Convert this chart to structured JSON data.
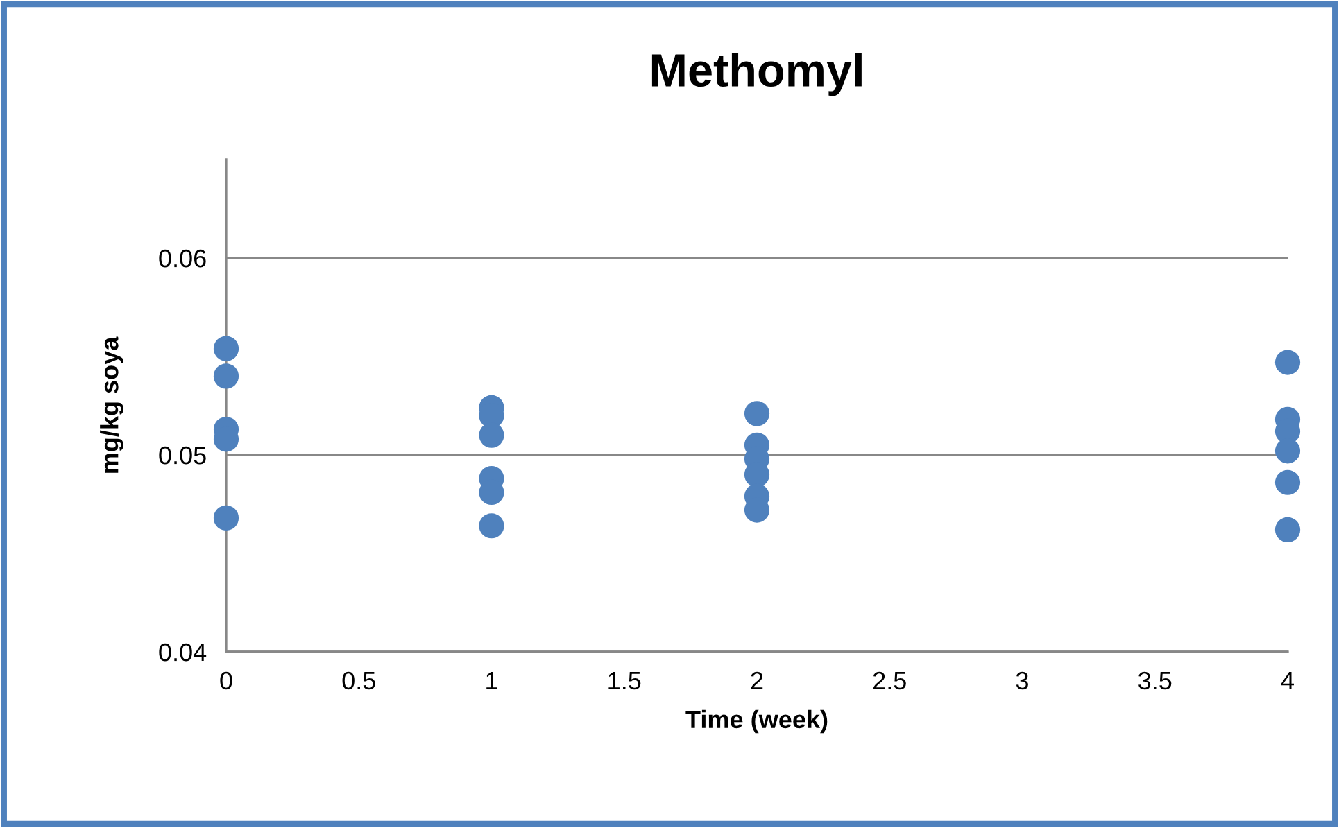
{
  "chart_data": {
    "type": "scatter",
    "title": "Methomyl",
    "xlabel": "Time (week)",
    "ylabel": "mg/kg soya",
    "series": [
      {
        "color": "#4f81bd",
        "x": [
          0,
          0,
          0,
          0,
          0,
          1,
          1,
          1,
          1,
          1,
          1,
          2,
          2,
          2,
          2,
          2,
          2,
          4,
          4,
          4,
          4,
          4,
          4
        ],
        "values": [
          0.0554,
          0.054,
          0.0513,
          0.0508,
          0.0468,
          0.0524,
          0.052,
          0.051,
          0.0488,
          0.0481,
          0.0464,
          0.0521,
          0.0505,
          0.0498,
          0.049,
          0.0479,
          0.0472,
          0.0547,
          0.0518,
          0.0512,
          0.0502,
          0.0486,
          0.0462
        ]
      }
    ],
    "xlim": [
      0,
      4
    ],
    "xticks": [
      0,
      0.5,
      1,
      1.5,
      2,
      2.5,
      3,
      3.5,
      4
    ],
    "ylim": [
      0.04,
      0.065
    ],
    "yticks": [
      0.04,
      0.05,
      0.06
    ],
    "grid": "y",
    "marker": "circle",
    "legend": false
  }
}
